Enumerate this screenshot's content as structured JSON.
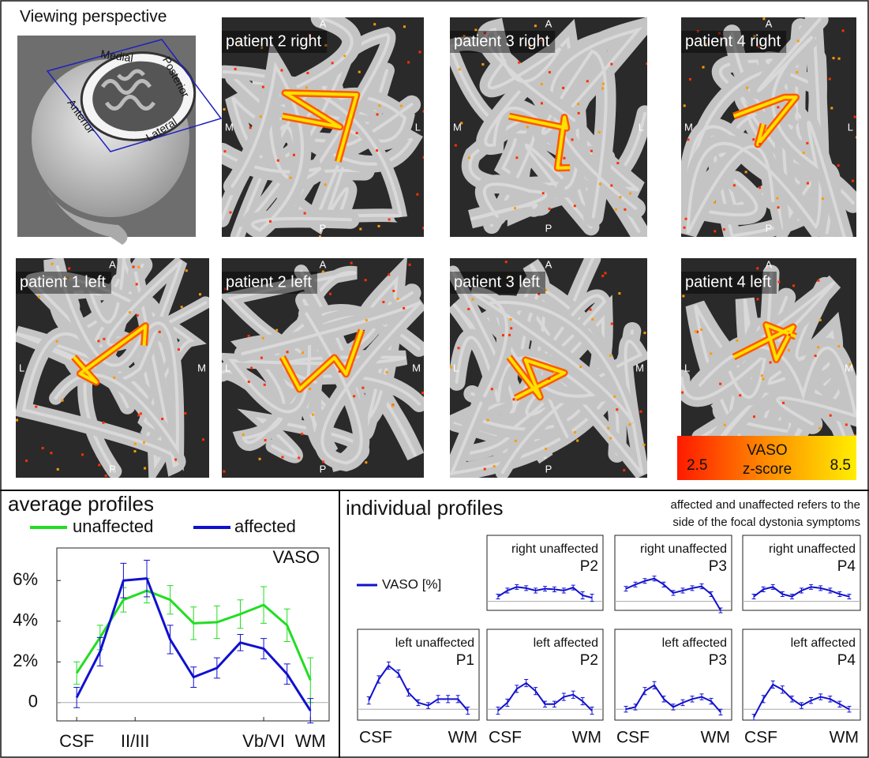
{
  "figure": {
    "perspective": {
      "title": "Viewing perspective",
      "labels": [
        "Medial",
        "Posterior",
        "Anterior",
        "Lateral"
      ]
    },
    "images": [
      {
        "label": "patient 2 right",
        "top": "A",
        "left": "M",
        "right": "L",
        "bottom": "P"
      },
      {
        "label": "patient 3 right",
        "top": "A",
        "left": "M",
        "right": "L",
        "bottom": "P"
      },
      {
        "label": "patient 4 right",
        "top": "A",
        "left": "M",
        "right": "L",
        "bottom": "P"
      },
      {
        "label": "patient 1 left",
        "top": "A",
        "left": "L",
        "right": "M",
        "bottom": "P"
      },
      {
        "label": "patient 2 left",
        "top": "A",
        "left": "L",
        "right": "M",
        "bottom": "P"
      },
      {
        "label": "patient 3 left",
        "top": "A",
        "left": "L",
        "right": "M",
        "bottom": "P"
      },
      {
        "label": "patient 4 left",
        "top": "A",
        "left": "L",
        "right": "M"
      }
    ],
    "colorbar": {
      "title": "VASO",
      "subtitle": "z-score",
      "range": [
        2.5,
        8.5
      ]
    }
  },
  "chart_data": [
    {
      "type": "line",
      "title": "average profiles",
      "annotation": "VASO",
      "x": [
        1,
        2,
        3,
        4,
        5,
        6,
        7,
        8,
        9,
        10,
        11
      ],
      "xlim": [
        0.15,
        11.8
      ],
      "xticks": [
        {
          "value": 1,
          "label": "CSF"
        },
        {
          "value": 3.5,
          "label": "II/III"
        },
        {
          "value": 9,
          "label": "Vb/VI"
        },
        {
          "value": 11,
          "label": "WM"
        }
      ],
      "ylim": [
        -0.9,
        7.6
      ],
      "yticks": [
        0,
        {
          "value": 2,
          "label": "2%"
        },
        {
          "value": 4,
          "label": "4%"
        },
        {
          "value": 6,
          "label": "6%"
        }
      ],
      "series": [
        {
          "name": "unaffected",
          "color": "#22dd22",
          "values": [
            1.45,
            3.2,
            5.05,
            5.5,
            5.05,
            3.9,
            3.95,
            4.35,
            4.8,
            3.8,
            1.1
          ],
          "errors": [
            0.55,
            0.6,
            0.6,
            0.6,
            0.7,
            0.8,
            0.8,
            0.7,
            0.9,
            0.8,
            1.1
          ]
        },
        {
          "name": "affected",
          "color": "#1010d0",
          "values": [
            0.25,
            2.5,
            6.0,
            6.1,
            3.1,
            1.25,
            1.7,
            2.95,
            2.65,
            1.4,
            -0.4
          ],
          "errors": [
            0.5,
            0.7,
            0.85,
            0.9,
            0.7,
            0.5,
            0.5,
            0.4,
            0.5,
            0.5,
            0.6
          ]
        }
      ]
    },
    {
      "type": "line",
      "title": [
        "right unaffected",
        "P2"
      ],
      "x": [
        1,
        2,
        3,
        4,
        5,
        6,
        7,
        8,
        9,
        10,
        11
      ],
      "xlim": [
        0.5,
        11.5
      ],
      "ylim": [
        -1.5,
        11
      ],
      "color": "#1010d0",
      "values": [
        0.8,
        1.8,
        2.4,
        2.2,
        1.8,
        2.1,
        2.0,
        1.8,
        2.3,
        1.0,
        0.6
      ],
      "errors": [
        0.4,
        0.4,
        0.4,
        0.4,
        0.4,
        0.4,
        0.4,
        0.4,
        0.4,
        0.6,
        0.6
      ]
    },
    {
      "type": "line",
      "title": [
        "right unaffected",
        "P3"
      ],
      "x": [
        1,
        2,
        3,
        4,
        5,
        6,
        7,
        8,
        9,
        10,
        11
      ],
      "xlim": [
        0.5,
        11.5
      ],
      "ylim": [
        -1.5,
        11
      ],
      "color": "#1010d0",
      "values": [
        2.1,
        2.8,
        3.4,
        3.8,
        2.8,
        1.4,
        1.8,
        2.2,
        2.5,
        1.2,
        -1.5
      ],
      "errors": [
        0.4,
        0.4,
        0.4,
        0.4,
        0.4,
        0.4,
        0.4,
        0.4,
        0.4,
        0.4,
        0.4
      ]
    },
    {
      "type": "line",
      "title": [
        "right unaffected",
        "P4"
      ],
      "x": [
        1,
        2,
        3,
        4,
        5,
        6,
        7,
        8,
        9,
        10,
        11
      ],
      "xlim": [
        0.5,
        11.5
      ],
      "ylim": [
        -1.5,
        11
      ],
      "color": "#1010d0",
      "values": [
        0.8,
        2.0,
        2.4,
        1.2,
        0.8,
        1.8,
        2.4,
        2.2,
        1.8,
        1.2,
        0.8
      ],
      "errors": [
        0.4,
        0.4,
        0.4,
        0.4,
        0.4,
        0.4,
        0.4,
        0.4,
        0.4,
        0.4,
        0.4
      ]
    },
    {
      "type": "line",
      "title": [
        "left unaffected",
        "P1"
      ],
      "x": [
        1,
        2,
        3,
        4,
        5,
        6,
        7,
        8,
        9,
        10,
        11
      ],
      "xlim": [
        0.5,
        11.5
      ],
      "ylim": [
        -1.5,
        11
      ],
      "color": "#1010d0",
      "values": [
        1.2,
        4.1,
        6.0,
        4.9,
        2.3,
        0.9,
        0.5,
        1.4,
        1.4,
        1.4,
        -0.2
      ],
      "errors": [
        0.5,
        0.5,
        0.5,
        0.5,
        0.5,
        0.4,
        0.4,
        0.5,
        0.5,
        0.5,
        0.5
      ]
    },
    {
      "type": "line",
      "title": [
        "left affected",
        "P2"
      ],
      "x": [
        1,
        2,
        3,
        4,
        5,
        6,
        7,
        8,
        9,
        10,
        11
      ],
      "xlim": [
        0.5,
        11.5
      ],
      "ylim": [
        -1.5,
        11
      ],
      "color": "#1010d0",
      "values": [
        -0.2,
        0.9,
        2.8,
        3.6,
        2.5,
        0.7,
        0.7,
        1.7,
        2.0,
        1.1,
        -0.2
      ],
      "errors": [
        0.5,
        0.5,
        0.5,
        0.5,
        0.5,
        0.4,
        0.4,
        0.5,
        0.5,
        0.5,
        0.5
      ]
    },
    {
      "type": "line",
      "title": [
        "left affected",
        "P3"
      ],
      "x": [
        1,
        2,
        3,
        4,
        5,
        6,
        7,
        8,
        9,
        10,
        11
      ],
      "xlim": [
        0.5,
        11.5
      ],
      "ylim": [
        -1.5,
        11
      ],
      "color": "#1010d0",
      "values": [
        0,
        0.3,
        2.5,
        3.3,
        1.4,
        0.3,
        0.9,
        1.4,
        1.7,
        1.1,
        -0.4
      ],
      "errors": [
        0.4,
        0.4,
        0.5,
        0.5,
        0.4,
        0.4,
        0.4,
        0.4,
        0.4,
        0.4,
        0.4
      ]
    },
    {
      "type": "line",
      "title": [
        "left affected",
        "P4"
      ],
      "x": [
        1,
        2,
        3,
        4,
        5,
        6,
        7,
        8,
        9,
        10,
        11
      ],
      "xlim": [
        0.5,
        11.5
      ],
      "ylim": [
        -1.5,
        11
      ],
      "color": "#1010d0",
      "values": [
        -1.1,
        1.4,
        3.4,
        2.7,
        1.4,
        0.5,
        1.2,
        1.7,
        1.4,
        0.7,
        0
      ],
      "errors": [
        0.4,
        0.5,
        0.5,
        0.5,
        0.4,
        0.4,
        0.4,
        0.4,
        0.4,
        0.4,
        0.4
      ]
    }
  ],
  "individual_profiles": {
    "title": "individual profiles",
    "note": [
      "affected and unaffected refers to the",
      "side of the focal dystonia symptoms"
    ],
    "legend": "VASO [%]",
    "color": "#1010d0",
    "xlabels": [
      "CSF",
      "WM"
    ]
  }
}
